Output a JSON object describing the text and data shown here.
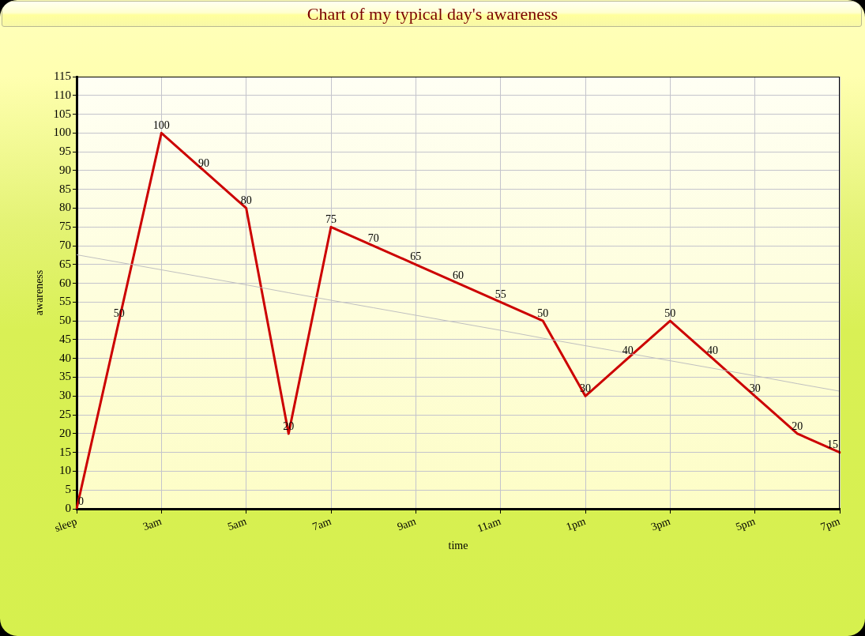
{
  "chart_data": {
    "type": "line",
    "title": "Chart of my typical day's awareness",
    "xlabel": "time",
    "ylabel": "awareness",
    "categories": [
      "sleep",
      null,
      "3am",
      null,
      "5am",
      null,
      "7am",
      null,
      "9am",
      null,
      "11am",
      null,
      "1pm",
      null,
      "3pm",
      null,
      "5pm",
      null,
      "7pm"
    ],
    "series": [
      {
        "color": "#cc0000",
        "values": [
          0,
          50,
          100,
          90,
          80,
          20,
          75,
          70,
          65,
          60,
          55,
          50,
          30,
          40,
          50,
          40,
          30,
          20,
          15
        ],
        "value_labels": [
          "0",
          "50",
          "100",
          "90",
          "80",
          "20",
          "75",
          "70",
          "65",
          "60",
          "55",
          "50",
          "30",
          "40",
          "50",
          "40",
          "30",
          "20",
          "15"
        ]
      },
      {
        "type": "line",
        "color": "#c0c0c0",
        "values": [
          67.6,
          65.6,
          63.6,
          61.6,
          59.6,
          57.5,
          55.5,
          53.5,
          51.5,
          49.5,
          47.5,
          45.4,
          43.4,
          41.4,
          39.4,
          37.4,
          35.4,
          33.3,
          31.3
        ]
      }
    ],
    "ylim": [
      0,
      115
    ],
    "yticks": [
      0,
      5,
      10,
      15,
      20,
      25,
      30,
      35,
      40,
      45,
      50,
      55,
      60,
      65,
      70,
      75,
      80,
      85,
      90,
      95,
      100,
      105,
      110,
      115
    ],
    "grid": true,
    "marker": "none",
    "line_style": "solid"
  }
}
